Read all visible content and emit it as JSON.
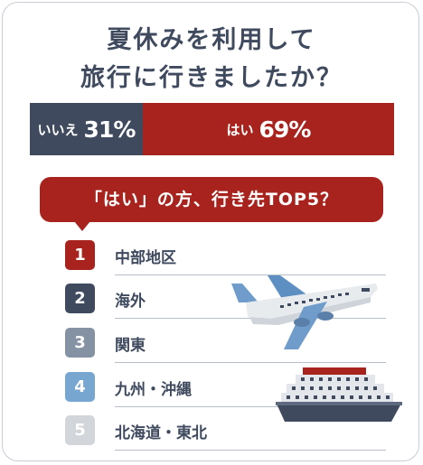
{
  "title": {
    "line1": "夏休みを利用して",
    "line2": "旅行に行きましたか？"
  },
  "chart_data": {
    "type": "bar",
    "orientation": "horizontal-stacked",
    "segments": [
      {
        "label": "いいえ",
        "value_label": "31%",
        "value": 31,
        "color": "#3f4a5e"
      },
      {
        "label": "はい",
        "value_label": "69%",
        "value": 69,
        "color": "#a8231e"
      }
    ]
  },
  "ranking": {
    "heading": "「はい」の方、行き先TOP5？",
    "items": [
      {
        "rank": "1",
        "name": "中部地区",
        "color": "#a8231e"
      },
      {
        "rank": "2",
        "name": "海外",
        "color": "#3f4a5e"
      },
      {
        "rank": "3",
        "name": "関東",
        "color": "#8592a4"
      },
      {
        "rank": "4",
        "name": "九州・沖縄",
        "color": "#77a6d1"
      },
      {
        "rank": "5",
        "name": "北海道・東北",
        "color": "#d2d5d9"
      }
    ]
  },
  "icons": {
    "plane": "airplane-icon",
    "ship": "cruise-ship-icon"
  }
}
